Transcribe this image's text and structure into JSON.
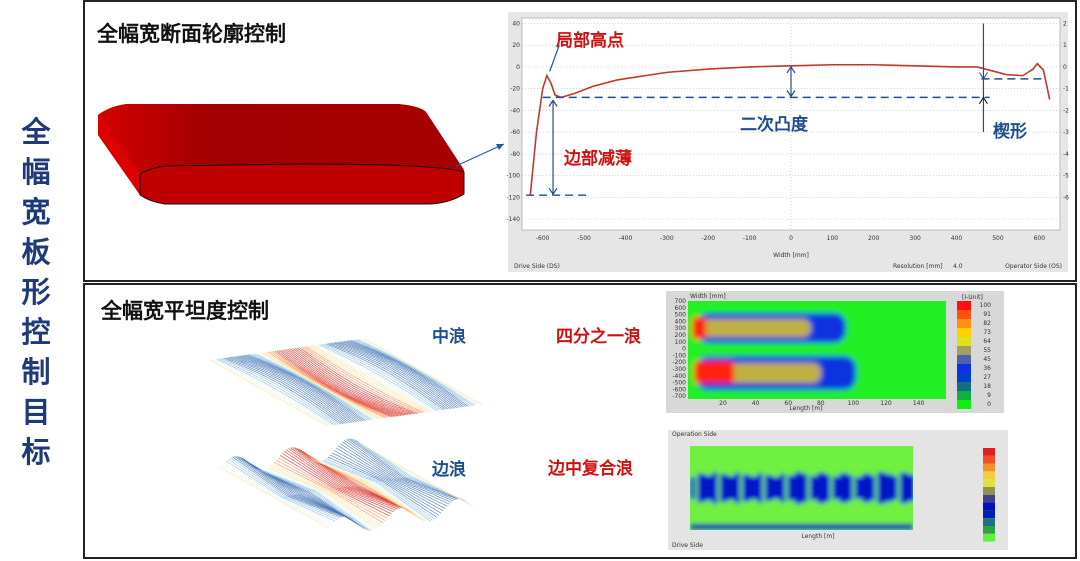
{
  "main_title": [
    "全",
    "幅",
    "宽",
    "板",
    "形",
    "控",
    "制",
    "目",
    "标"
  ],
  "section_profile": {
    "title": "全幅宽断面轮廓控制",
    "annotations": {
      "local_high": "局部高点",
      "edge_drop": "边部减薄",
      "crown": "二次凸度",
      "wedge": "楔形"
    },
    "chart_data": {
      "type": "line",
      "xlabel": "Width [mm]",
      "left_label": "Drive Side (DS)",
      "right_label": "Operator Side (OS)",
      "resolution_label": "Resolution [mm]",
      "resolution_value": "4.0",
      "x_ticks": [
        -600,
        -500,
        -400,
        -300,
        -200,
        -100,
        0,
        100,
        200,
        300,
        400,
        500,
        600
      ],
      "y_ticks": [
        40,
        20,
        0,
        -20,
        -40,
        -60,
        -80,
        -100,
        -120,
        -140
      ],
      "y2_ticks": [
        2,
        1,
        0,
        -1,
        -2,
        -3,
        -4,
        -5,
        -6
      ],
      "xlim": [
        -650,
        650
      ],
      "ylim": [
        -150,
        45
      ],
      "grid": true,
      "color": "#c0392b",
      "x": [
        -630,
        -615,
        -600,
        -590,
        -580,
        -570,
        -555,
        -520,
        -480,
        -420,
        -300,
        -200,
        -100,
        0,
        100,
        200,
        300,
        400,
        450,
        480,
        520,
        560,
        585,
        595,
        610,
        625
      ],
      "y": [
        -118,
        -60,
        -20,
        -8,
        -15,
        -26,
        -28,
        -24,
        -18,
        -12,
        -5,
        -2,
        0,
        1,
        2,
        2,
        1,
        0,
        0,
        -3,
        -7,
        -8,
        -2,
        3,
        -3,
        -30
      ]
    }
  },
  "section_flatness": {
    "title": "全幅宽平坦度控制",
    "labels": {
      "center_wave": "中浪",
      "edge_wave": "边浪",
      "quarter_wave": "四分之一浪",
      "compound_wave": "边中复合浪"
    },
    "heatmap1": {
      "y_label": "Width [mm]",
      "x_label": "Length [m]",
      "y_ticks": [
        "700",
        "600",
        "500",
        "400",
        "300",
        "200",
        "100",
        "0",
        "-100",
        "-200",
        "-300",
        "-400",
        "-500",
        "-600",
        "-700"
      ],
      "x_ticks": [
        "20",
        "40",
        "60",
        "80",
        "100",
        "120",
        "140"
      ],
      "legend_title": "[I-Unit]",
      "legend": [
        "100",
        "91",
        "82",
        "73",
        "64",
        "55",
        "45",
        "36",
        "27",
        "18",
        "9",
        "0"
      ],
      "legend_colors": [
        "#ff1010",
        "#ff5010",
        "#ff9010",
        "#ffd000",
        "#e0e020",
        "#a0a060",
        "#5060b0",
        "#1030e0",
        "#0040d0",
        "#107080",
        "#10b040",
        "#10f010"
      ]
    },
    "heatmap2": {
      "header": "Operation Side",
      "footer": "Drive Side",
      "x_label": "Length [m]",
      "legend_colors": [
        "#e02020",
        "#f05020",
        "#f09030",
        "#f0d040",
        "#e0e040",
        "#909050",
        "#404090",
        "#0010c0",
        "#0020b0",
        "#207080",
        "#30a040",
        "#60f040"
      ]
    }
  }
}
